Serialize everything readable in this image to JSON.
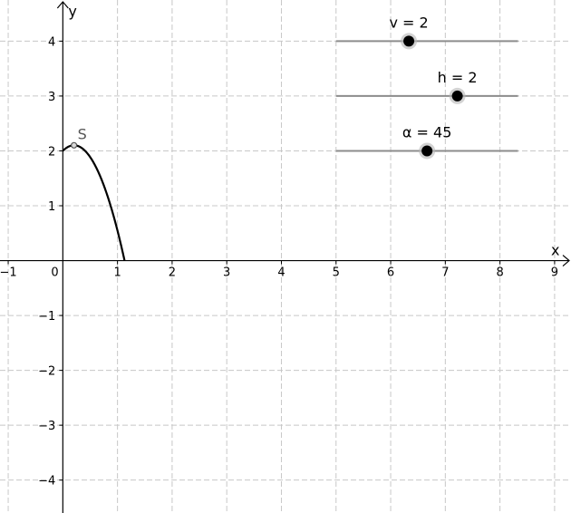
{
  "axes": {
    "x_label": "x",
    "y_label": "y",
    "x_range": [
      -1.15,
      9.3
    ],
    "y_range": [
      -4.6,
      4.75
    ],
    "x_ticks": [
      -1,
      1,
      2,
      3,
      4,
      5,
      6,
      7,
      8,
      9
    ],
    "y_ticks": [
      -4,
      -3,
      -2,
      -1,
      1,
      2,
      3,
      4
    ],
    "origin_label": "0",
    "grid": true
  },
  "sliders": [
    {
      "name": "v",
      "label": "v = 2",
      "value": 2,
      "min": 0,
      "max": 5,
      "track_start": 5,
      "track_end": 8.33,
      "row_y": 4
    },
    {
      "name": "h",
      "label": "h = 2",
      "value": 2,
      "min": 0,
      "max": 3,
      "track_start": 5,
      "track_end": 8.33,
      "row_y": 3
    },
    {
      "name": "alpha",
      "label": "α = 45",
      "value": 45,
      "min": 0,
      "max": 90,
      "track_start": 5,
      "track_end": 8.33,
      "row_y": 2
    }
  ],
  "curve": {
    "description_color": "#000000",
    "gravity": 9.81
  },
  "point_S": {
    "label": "S",
    "x": 0.204,
    "y": 2.102
  },
  "colors": {
    "curve": "#000000",
    "grid": "#c8c8c8",
    "slider_track": "#8c8c8c",
    "slider_knob": "#000000",
    "point": "#555555"
  }
}
